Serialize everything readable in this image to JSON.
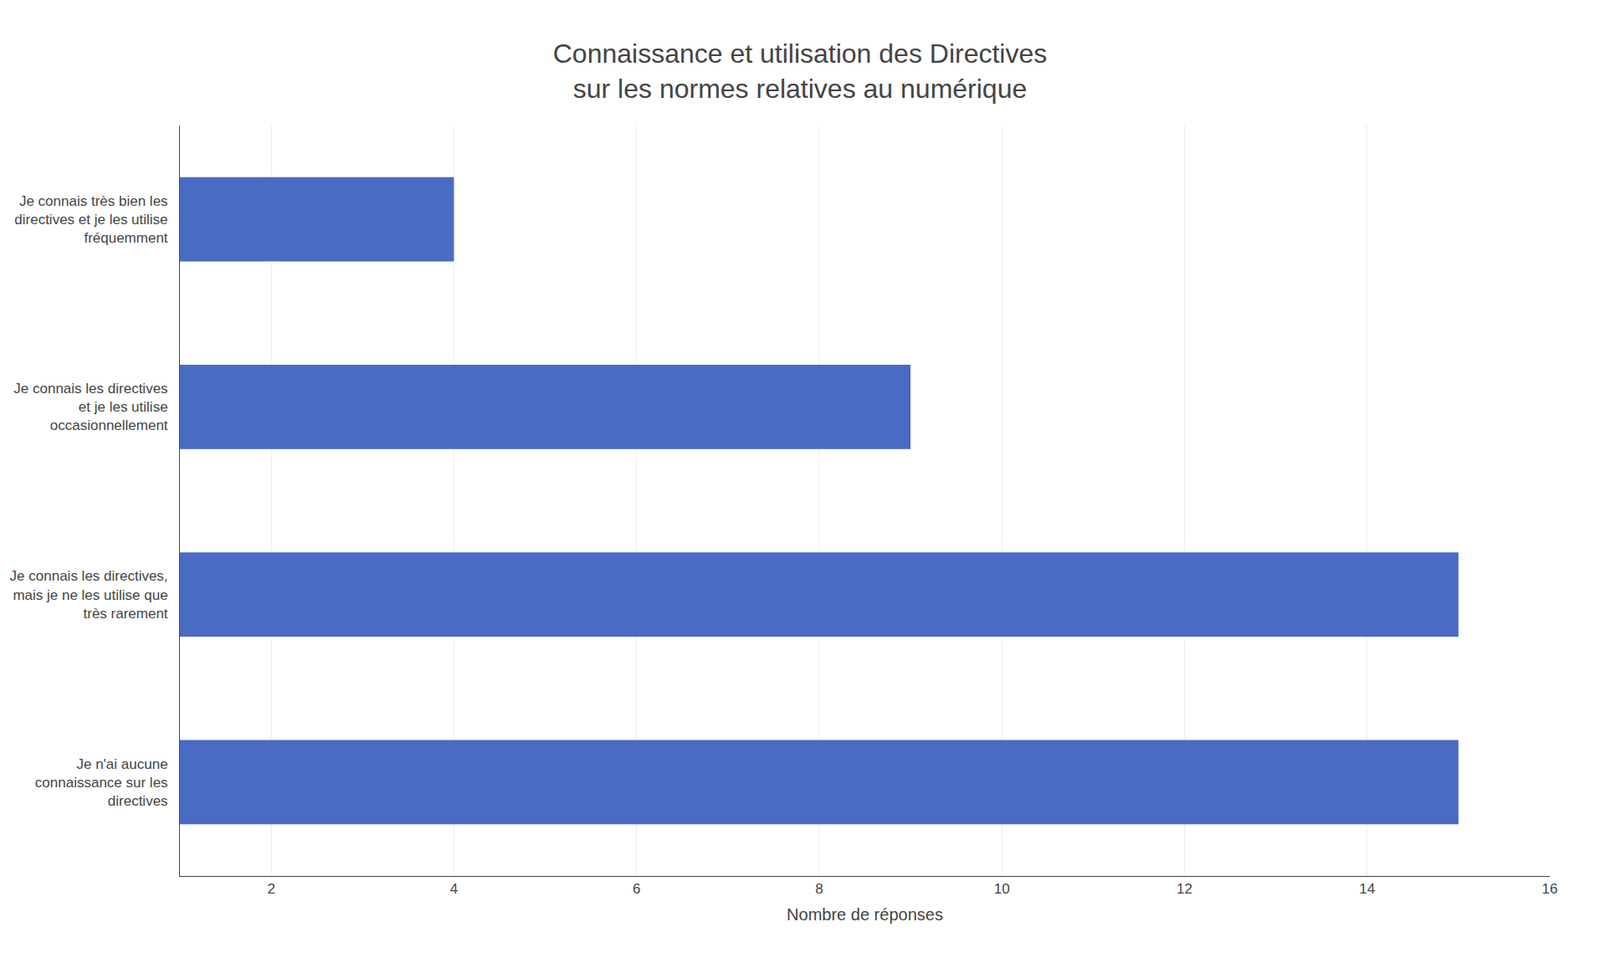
{
  "chart_data": {
    "type": "bar",
    "orientation": "horizontal",
    "title": "Connaissance et utilisation des Directives\nsur les normes relatives au numérique",
    "xlabel": "Nombre de réponses",
    "categories": [
      "Je n'ai aucune\nconnaissance sur les\ndirectives",
      "Je connais les directives,\nmais je ne les utilise que\ntrès rarement",
      "Je connais les directives\net je les utilise\noccasionnellement",
      "Je connais très bien les\ndirectives et je les utilise\nfréquemment"
    ],
    "values": [
      15,
      15,
      9,
      4
    ],
    "color": "#4A6BC4",
    "xlim": [
      1,
      16
    ],
    "xticks": [
      2,
      4,
      6,
      8,
      10,
      12,
      14,
      16
    ],
    "grid": true
  }
}
